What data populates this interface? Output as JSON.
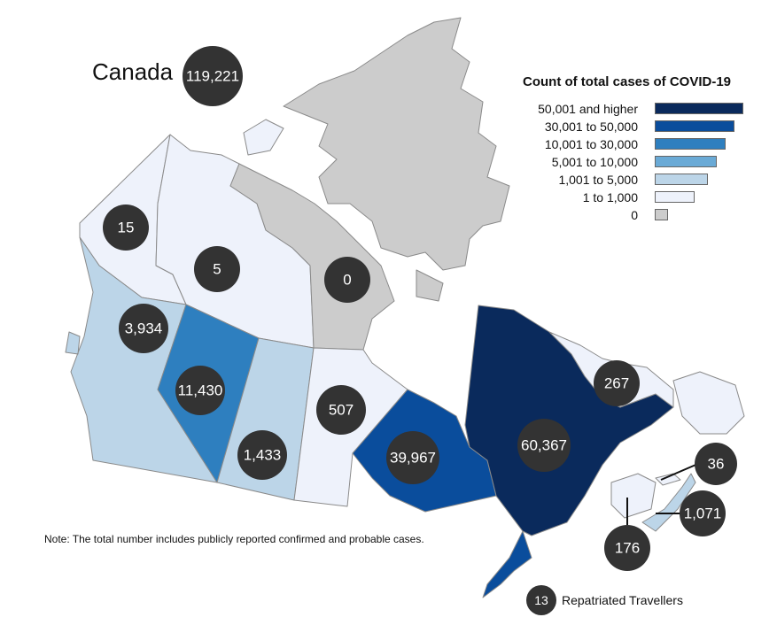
{
  "title": "Canada",
  "total": "119,221",
  "colors": {
    "band_50001_plus": "#0a2a5c",
    "band_30001_50000": "#0a4d9c",
    "band_10001_30000": "#2e7fbf",
    "band_5001_10000": "#6aaad6",
    "band_1001_5000": "#bcd5e8",
    "band_1_1000": "#eef2fb",
    "band_0": "#cccccc",
    "circle": "#333333"
  },
  "legend": {
    "title": "Count of total cases of COVID-19",
    "items": [
      {
        "label": "50,001 and higher",
        "color": "#0a2a5c",
        "fraction": 1.0
      },
      {
        "label": "30,001 to 50,000",
        "color": "#0a4d9c",
        "fraction": 0.9
      },
      {
        "label": "10,001 to 30,000",
        "color": "#2e7fbf",
        "fraction": 0.8
      },
      {
        "label": "5,001 to 10,000",
        "color": "#6aaad6",
        "fraction": 0.7
      },
      {
        "label": "1,001 to 5,000",
        "color": "#bcd5e8",
        "fraction": 0.6
      },
      {
        "label": "1 to 1,000",
        "color": "#eef2fb",
        "fraction": 0.45
      },
      {
        "label": "0",
        "color": "#cccccc",
        "fraction": 0.15
      }
    ]
  },
  "regions": [
    {
      "id": "yukon",
      "count": "15"
    },
    {
      "id": "northwest-territories",
      "count": "5"
    },
    {
      "id": "nunavut",
      "count": "0"
    },
    {
      "id": "british-columbia",
      "count": "3,934"
    },
    {
      "id": "alberta",
      "count": "11,430"
    },
    {
      "id": "saskatchewan",
      "count": "1,433"
    },
    {
      "id": "manitoba",
      "count": "507"
    },
    {
      "id": "ontario",
      "count": "39,967"
    },
    {
      "id": "quebec",
      "count": "60,367"
    },
    {
      "id": "newfoundland-and-labrador",
      "count": "267"
    },
    {
      "id": "prince-edward-island",
      "count": "36"
    },
    {
      "id": "nova-scotia",
      "count": "1,071"
    },
    {
      "id": "new-brunswick",
      "count": "176"
    }
  ],
  "note": "Note: The total number includes publicly reported confirmed and probable cases.",
  "repatriated": {
    "count": "13",
    "label": "Repatriated Travellers"
  }
}
